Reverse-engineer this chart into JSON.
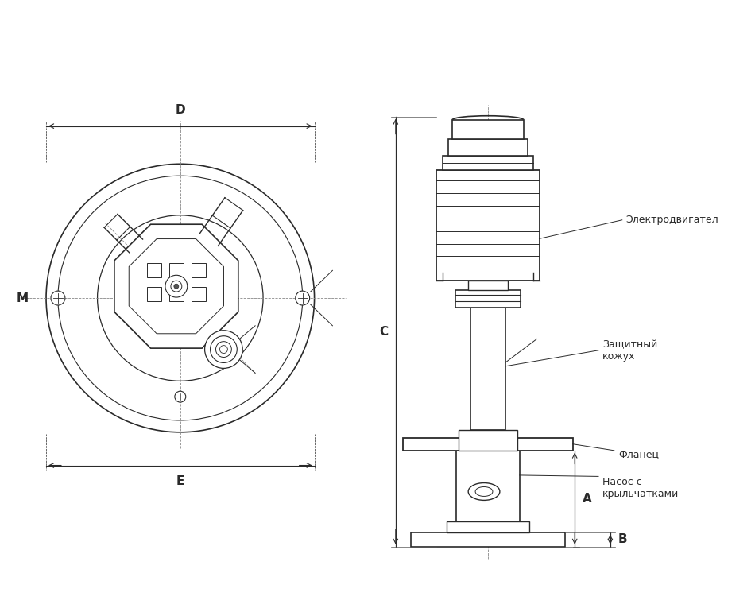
{
  "line_color": "#2a2a2a",
  "labels": {
    "D": "D",
    "E": "E",
    "M": "M",
    "C": "C",
    "A": "A",
    "B": "B",
    "elektrodvigatel": "Электродвигател",
    "zashchitny_kozuh": "Защитный\nкожух",
    "flanets": "Фланец",
    "nasos_s_krylchatkami": "Насос с\nкрыльчатками"
  }
}
